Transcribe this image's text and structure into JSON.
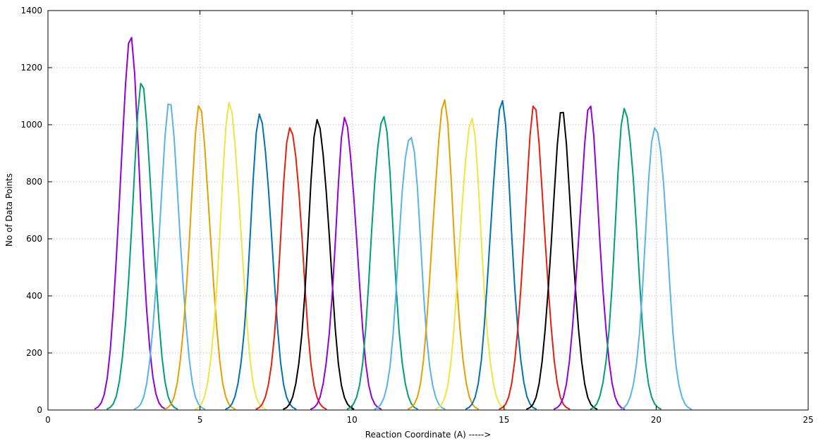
{
  "chart_data": {
    "type": "line",
    "title": "",
    "xlabel": "Reaction Coordinate (A)  ----->",
    "ylabel": "No of Data Points",
    "xlim": [
      0,
      25
    ],
    "ylim": [
      0,
      1400
    ],
    "xticks": [
      0,
      5,
      10,
      15,
      20,
      25
    ],
    "yticks": [
      0,
      200,
      400,
      600,
      800,
      1000,
      1200,
      1400
    ],
    "grid": true,
    "legend": "none",
    "line_colors": [
      "#9400d3",
      "#009e73",
      "#56b4e9",
      "#e69f00",
      "#f0e442",
      "#0072b2",
      "#e51e10",
      "#000000"
    ],
    "series": [
      {
        "center": 2.7,
        "peak": 1275
      },
      {
        "center": 3.1,
        "peak": 1118
      },
      {
        "center": 4.0,
        "peak": 1050
      },
      {
        "center": 5.0,
        "peak": 1042
      },
      {
        "center": 6.0,
        "peak": 1060
      },
      {
        "center": 7.0,
        "peak": 1037
      },
      {
        "center": 8.0,
        "peak": 1008
      },
      {
        "center": 8.9,
        "peak": 1022
      },
      {
        "center": 9.8,
        "peak": 1016
      },
      {
        "center": 11.0,
        "peak": 1050
      },
      {
        "center": 11.9,
        "peak": 988
      },
      {
        "center": 13.0,
        "peak": 1072
      },
      {
        "center": 13.9,
        "peak": 1020
      },
      {
        "center": 14.9,
        "peak": 1066
      },
      {
        "center": 16.0,
        "peak": 1040
      },
      {
        "center": 16.9,
        "peak": 1022
      },
      {
        "center": 17.8,
        "peak": 1040
      },
      {
        "center": 19.0,
        "peak": 1068
      },
      {
        "center": 20.0,
        "peak": 1018
      }
    ]
  }
}
